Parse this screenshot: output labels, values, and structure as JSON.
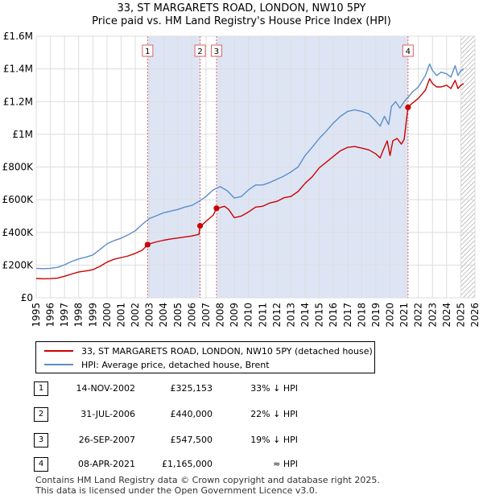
{
  "header": {
    "title_line1": "33, ST MARGARETS ROAD, LONDON, NW10 5PY",
    "title_line2": "Price paid vs. HM Land Registry's House Price Index (HPI)"
  },
  "colors": {
    "price_line": "#cc0000",
    "hpi_line": "#5b8dc9",
    "shade": "#dde5f5",
    "vline": "#e06060",
    "grid": "#dddddd"
  },
  "chart_data": {
    "type": "line",
    "title": "Price paid vs. HM Land Registry's House Price Index (HPI)",
    "xlabel": "",
    "ylabel": "",
    "xlim": [
      1995,
      2026
    ],
    "ylim": [
      0,
      1600000
    ],
    "x_ticks": [
      "1995",
      "1996",
      "1997",
      "1998",
      "1999",
      "2000",
      "2001",
      "2002",
      "2003",
      "2004",
      "2005",
      "2006",
      "2007",
      "2008",
      "2009",
      "2010",
      "2011",
      "2012",
      "2013",
      "2014",
      "2015",
      "2016",
      "2017",
      "2018",
      "2019",
      "2020",
      "2021",
      "2022",
      "2023",
      "2024",
      "2025",
      "2026"
    ],
    "y_ticks": [
      {
        "value": 0,
        "label": "£0"
      },
      {
        "value": 200000,
        "label": "£200K"
      },
      {
        "value": 400000,
        "label": "£400K"
      },
      {
        "value": 600000,
        "label": "£600K"
      },
      {
        "value": 800000,
        "label": "£800K"
      },
      {
        "value": 1000000,
        "label": "£1M"
      },
      {
        "value": 1200000,
        "label": "£1.2M"
      },
      {
        "value": 1400000,
        "label": "£1.4M"
      },
      {
        "value": 1600000,
        "label": "£1.6M"
      }
    ],
    "grid": true,
    "shaded_ranges": [
      [
        2002.87,
        2006.58
      ],
      [
        2007.74,
        2021.27
      ]
    ],
    "hatched_from": 2025.0,
    "series": [
      {
        "name": "33, ST MARGARETS ROAD, LONDON, NW10 5PY (detached house)",
        "color": "#cc0000",
        "points": [
          [
            1995.0,
            118000
          ],
          [
            1995.5,
            116000
          ],
          [
            1996.0,
            117000
          ],
          [
            1996.5,
            120000
          ],
          [
            1997.0,
            132000
          ],
          [
            1997.5,
            145000
          ],
          [
            1998.0,
            158000
          ],
          [
            1998.5,
            164000
          ],
          [
            1999.0,
            172000
          ],
          [
            1999.5,
            192000
          ],
          [
            2000.0,
            218000
          ],
          [
            2000.5,
            236000
          ],
          [
            2001.0,
            246000
          ],
          [
            2001.5,
            256000
          ],
          [
            2002.0,
            272000
          ],
          [
            2002.5,
            292000
          ],
          [
            2002.87,
            325153
          ],
          [
            2003.0,
            330000
          ],
          [
            2003.5,
            342000
          ],
          [
            2004.0,
            352000
          ],
          [
            2004.5,
            360000
          ],
          [
            2005.0,
            366000
          ],
          [
            2005.5,
            372000
          ],
          [
            2006.0,
            378000
          ],
          [
            2006.5,
            388000
          ],
          [
            2006.58,
            440000
          ],
          [
            2006.8,
            452000
          ],
          [
            2007.0,
            468000
          ],
          [
            2007.5,
            505000
          ],
          [
            2007.74,
            547500
          ],
          [
            2008.0,
            552000
          ],
          [
            2008.3,
            560000
          ],
          [
            2008.6,
            540000
          ],
          [
            2009.0,
            490000
          ],
          [
            2009.5,
            500000
          ],
          [
            2010.0,
            525000
          ],
          [
            2010.5,
            555000
          ],
          [
            2011.0,
            560000
          ],
          [
            2011.5,
            580000
          ],
          [
            2012.0,
            590000
          ],
          [
            2012.5,
            612000
          ],
          [
            2013.0,
            620000
          ],
          [
            2013.5,
            650000
          ],
          [
            2014.0,
            700000
          ],
          [
            2014.5,
            740000
          ],
          [
            2015.0,
            795000
          ],
          [
            2015.5,
            830000
          ],
          [
            2016.0,
            865000
          ],
          [
            2016.5,
            900000
          ],
          [
            2017.0,
            920000
          ],
          [
            2017.5,
            925000
          ],
          [
            2018.0,
            915000
          ],
          [
            2018.5,
            905000
          ],
          [
            2019.0,
            880000
          ],
          [
            2019.3,
            855000
          ],
          [
            2019.5,
            900000
          ],
          [
            2019.8,
            960000
          ],
          [
            2020.0,
            870000
          ],
          [
            2020.2,
            960000
          ],
          [
            2020.5,
            975000
          ],
          [
            2020.8,
            940000
          ],
          [
            2021.0,
            970000
          ],
          [
            2021.27,
            1165000
          ],
          [
            2021.5,
            1185000
          ],
          [
            2022.0,
            1220000
          ],
          [
            2022.5,
            1270000
          ],
          [
            2022.8,
            1340000
          ],
          [
            2023.0,
            1310000
          ],
          [
            2023.3,
            1290000
          ],
          [
            2023.6,
            1290000
          ],
          [
            2024.0,
            1300000
          ],
          [
            2024.3,
            1280000
          ],
          [
            2024.6,
            1330000
          ],
          [
            2024.8,
            1280000
          ],
          [
            2025.0,
            1300000
          ],
          [
            2025.2,
            1310000
          ]
        ]
      },
      {
        "name": "HPI: Average price, detached house, Brent",
        "color": "#5b8dc9",
        "points": [
          [
            1995.0,
            180000
          ],
          [
            1995.5,
            178000
          ],
          [
            1996.0,
            180000
          ],
          [
            1996.5,
            186000
          ],
          [
            1997.0,
            202000
          ],
          [
            1997.5,
            222000
          ],
          [
            1998.0,
            238000
          ],
          [
            1998.5,
            248000
          ],
          [
            1999.0,
            262000
          ],
          [
            1999.5,
            295000
          ],
          [
            2000.0,
            330000
          ],
          [
            2000.5,
            350000
          ],
          [
            2001.0,
            365000
          ],
          [
            2001.5,
            385000
          ],
          [
            2002.0,
            410000
          ],
          [
            2002.5,
            450000
          ],
          [
            2003.0,
            485000
          ],
          [
            2003.5,
            502000
          ],
          [
            2004.0,
            520000
          ],
          [
            2004.5,
            530000
          ],
          [
            2005.0,
            540000
          ],
          [
            2005.5,
            555000
          ],
          [
            2006.0,
            565000
          ],
          [
            2006.5,
            590000
          ],
          [
            2007.0,
            620000
          ],
          [
            2007.5,
            660000
          ],
          [
            2008.0,
            680000
          ],
          [
            2008.5,
            655000
          ],
          [
            2009.0,
            610000
          ],
          [
            2009.5,
            620000
          ],
          [
            2010.0,
            660000
          ],
          [
            2010.5,
            690000
          ],
          [
            2011.0,
            690000
          ],
          [
            2011.5,
            705000
          ],
          [
            2012.0,
            725000
          ],
          [
            2012.5,
            745000
          ],
          [
            2013.0,
            770000
          ],
          [
            2013.5,
            800000
          ],
          [
            2014.0,
            870000
          ],
          [
            2014.5,
            920000
          ],
          [
            2015.0,
            975000
          ],
          [
            2015.5,
            1020000
          ],
          [
            2016.0,
            1070000
          ],
          [
            2016.5,
            1110000
          ],
          [
            2017.0,
            1140000
          ],
          [
            2017.5,
            1150000
          ],
          [
            2018.0,
            1140000
          ],
          [
            2018.5,
            1125000
          ],
          [
            2019.0,
            1080000
          ],
          [
            2019.3,
            1050000
          ],
          [
            2019.6,
            1110000
          ],
          [
            2019.9,
            1060000
          ],
          [
            2020.1,
            1170000
          ],
          [
            2020.4,
            1200000
          ],
          [
            2020.7,
            1160000
          ],
          [
            2021.0,
            1200000
          ],
          [
            2021.3,
            1230000
          ],
          [
            2021.6,
            1260000
          ],
          [
            2022.0,
            1290000
          ],
          [
            2022.5,
            1360000
          ],
          [
            2022.8,
            1430000
          ],
          [
            2023.0,
            1390000
          ],
          [
            2023.3,
            1360000
          ],
          [
            2023.6,
            1380000
          ],
          [
            2024.0,
            1370000
          ],
          [
            2024.3,
            1350000
          ],
          [
            2024.6,
            1420000
          ],
          [
            2024.8,
            1360000
          ],
          [
            2025.0,
            1390000
          ],
          [
            2025.2,
            1400000
          ]
        ]
      }
    ],
    "transactions": [
      {
        "label": "1",
        "x": 2002.87,
        "price": 325153
      },
      {
        "label": "2",
        "x": 2006.58,
        "price": 440000
      },
      {
        "label": "3",
        "x": 2007.74,
        "price": 547500
      },
      {
        "label": "4",
        "x": 2021.27,
        "price": 1165000
      }
    ]
  },
  "legend": {
    "price_label": "33, ST MARGARETS ROAD, LONDON, NW10 5PY (detached house)",
    "hpi_label": "HPI: Average price, detached house, Brent"
  },
  "transactions_table": [
    {
      "num": "1",
      "date": "14-NOV-2002",
      "price": "£325,153",
      "hpi": "33% ↓ HPI"
    },
    {
      "num": "2",
      "date": "31-JUL-2006",
      "price": "£440,000",
      "hpi": "22% ↓ HPI"
    },
    {
      "num": "3",
      "date": "26-SEP-2007",
      "price": "£547,500",
      "hpi": "19% ↓ HPI"
    },
    {
      "num": "4",
      "date": "08-APR-2021",
      "price": "£1,165,000",
      "hpi": "≈ HPI"
    }
  ],
  "footer": {
    "line1": "Contains HM Land Registry data © Crown copyright and database right 2025.",
    "line2": "This data is licensed under the Open Government Licence v3.0."
  }
}
